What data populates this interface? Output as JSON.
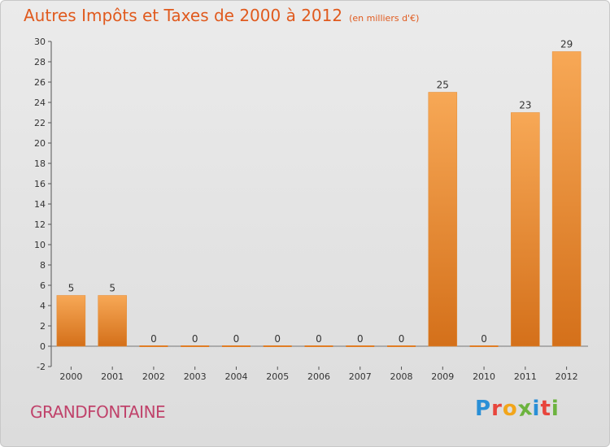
{
  "header": {
    "title": "Autres Impôts et Taxes de 2000 à 2012",
    "unit": "(en milliers d'€)"
  },
  "footer": {
    "commune": "GRANDFONTAINE",
    "logo_letters": [
      "P",
      "r",
      "o",
      "x",
      "i",
      "t",
      "i"
    ],
    "logo_colors": [
      "#2a8fd6",
      "#e8453c",
      "#f2a51a",
      "#6cb33e",
      "#2a8fd6",
      "#e8453c",
      "#6cb33e"
    ]
  },
  "chart_data": {
    "type": "bar",
    "categories": [
      "2000",
      "2001",
      "2002",
      "2003",
      "2004",
      "2005",
      "2006",
      "2007",
      "2008",
      "2009",
      "2010",
      "2011",
      "2012"
    ],
    "values": [
      5,
      5,
      0,
      0,
      0,
      0,
      0,
      0,
      0,
      25,
      0,
      23,
      29
    ],
    "data_labels": [
      "5",
      "5",
      "0",
      "0",
      "0",
      "0",
      "0",
      "0",
      "0",
      "25",
      "0",
      "23",
      "29"
    ],
    "ylim": [
      -2,
      30
    ],
    "yticks": [
      -2,
      0,
      2,
      4,
      6,
      8,
      10,
      12,
      14,
      16,
      18,
      20,
      22,
      24,
      26,
      28,
      30
    ],
    "grid": false,
    "bar_color_top": "#f7a856",
    "bar_color_bottom": "#d4701a"
  }
}
